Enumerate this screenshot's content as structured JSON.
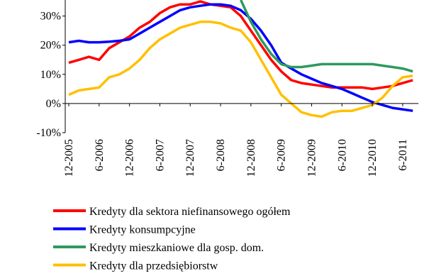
{
  "chart_data": {
    "type": "line",
    "categories": [
      "12-2005",
      null,
      null,
      "6-2006",
      null,
      null,
      "12-2006",
      null,
      null,
      "6-2007",
      null,
      null,
      "12-2007",
      null,
      null,
      "6-2008",
      null,
      null,
      "12-2008",
      null,
      null,
      "6-2009",
      null,
      null,
      "12-2009",
      null,
      null,
      "6-2010",
      null,
      null,
      "12-2010",
      null,
      null,
      "6-2011",
      null
    ],
    "series": [
      {
        "name": "Kredyty dla sektora niefinansowego ogółem",
        "color": "#ff0000",
        "values": [
          14,
          15,
          16,
          15,
          19,
          21,
          23,
          26,
          28,
          31,
          33,
          34,
          34,
          35,
          34,
          33.5,
          33,
          30,
          25,
          20,
          15,
          11,
          8,
          7,
          6.5,
          6,
          5.5,
          5.5,
          5.5,
          5.5,
          5,
          5.5,
          6,
          7,
          8
        ]
      },
      {
        "name": "Kredyty konsumpcyjne",
        "color": "#0000ff",
        "values": [
          21,
          21.5,
          21,
          21,
          21.2,
          21.5,
          22,
          24,
          26,
          28,
          30,
          32,
          33,
          33.5,
          34,
          34,
          33.5,
          32,
          29,
          25,
          20,
          14,
          12,
          10,
          8.5,
          7,
          6,
          5,
          3.5,
          2,
          0.5,
          -0.5,
          -1.5,
          -2,
          -2.5
        ]
      },
      {
        "name": "Kredyty mieszkaniowe dla gosp. dom.",
        "color": "#2e9a5e",
        "values": [
          null,
          null,
          null,
          null,
          null,
          null,
          null,
          null,
          null,
          null,
          null,
          null,
          null,
          null,
          null,
          null,
          null,
          35.5,
          28,
          22,
          17,
          13.5,
          12.5,
          12.5,
          13,
          13.5,
          13.5,
          13.5,
          13.5,
          13.5,
          13.5,
          13,
          12.5,
          12,
          11
        ]
      },
      {
        "name": "Kredyty dla przedsiębiorstw",
        "color": "#ffc000",
        "values": [
          3,
          4.5,
          5,
          5.5,
          9,
          10,
          12,
          15,
          19,
          22,
          24,
          26,
          27,
          28,
          28,
          27.5,
          26,
          25,
          21,
          15,
          9,
          3,
          0,
          -3,
          -4,
          -4.5,
          -3,
          -2.5,
          -2.5,
          -1.5,
          -0.5,
          2,
          6,
          9,
          9.5
        ]
      }
    ],
    "ylim": [
      -10,
      35.5
    ],
    "yticks": [
      {
        "value": -10,
        "label": "-10%"
      },
      {
        "value": 0,
        "label": "0%"
      },
      {
        "value": 10,
        "label": "10%"
      },
      {
        "value": 20,
        "label": "20%"
      },
      {
        "value": 30,
        "label": "30%"
      }
    ]
  }
}
